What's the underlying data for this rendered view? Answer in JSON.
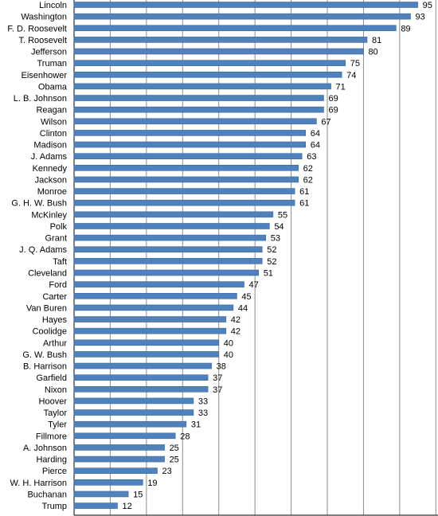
{
  "colors": {
    "bar": "#4f81bd",
    "bar_stroke": "#3b6797",
    "grid": "#8c8c8c",
    "axis": "#000000",
    "text": "#000000"
  },
  "chart_data": {
    "type": "bar",
    "orientation": "horizontal",
    "grid": true,
    "title": "",
    "xlabel": "",
    "ylabel": "",
    "xlim": [
      0,
      100
    ],
    "categories": [
      "Lincoln",
      "Washington",
      "F. D. Roosevelt",
      "T. Roosevelt",
      "Jefferson",
      "Truman",
      "Eisenhower",
      "Obama",
      "L. B. Johnson",
      "Reagan",
      "Wilson",
      "Clinton",
      "Madison",
      "J. Adams",
      "Kennedy",
      "Jackson",
      "Monroe",
      "G. H. W. Bush",
      "McKinley",
      "Polk",
      "Grant",
      "J. Q. Adams",
      "Taft",
      "Cleveland",
      "Ford",
      "Carter",
      "Van Buren",
      "Hayes",
      "Coolidge",
      "Arthur",
      "G. W. Bush",
      "B. Harrison",
      "Garfield",
      "Nixon",
      "Hoover",
      "Taylor",
      "Tyler",
      "Fillmore",
      "A. Johnson",
      "Harding",
      "Pierce",
      "W. H. Harrison",
      "Buchanan",
      "Trump"
    ],
    "values": [
      95,
      93,
      89,
      81,
      80,
      75,
      74,
      71,
      69,
      69,
      67,
      64,
      64,
      63,
      62,
      62,
      61,
      61,
      55,
      54,
      53,
      52,
      52,
      51,
      47,
      45,
      44,
      42,
      42,
      40,
      40,
      38,
      37,
      37,
      33,
      33,
      31,
      28,
      25,
      25,
      23,
      19,
      15,
      12
    ],
    "data_labels": [
      "95",
      "93",
      "89",
      "81",
      "80",
      "75",
      "74",
      "71",
      "69",
      "69",
      "67",
      "64",
      "64",
      "63",
      "62",
      "62",
      "61",
      "61",
      "55",
      "54",
      "53",
      "52",
      "52",
      "51",
      "47",
      "45",
      "44",
      "42",
      "42",
      "40",
      "40",
      "38",
      "37",
      "37",
      "33",
      "33",
      "31",
      "28",
      "25",
      "25",
      "23",
      "19",
      "15",
      "12"
    ]
  }
}
